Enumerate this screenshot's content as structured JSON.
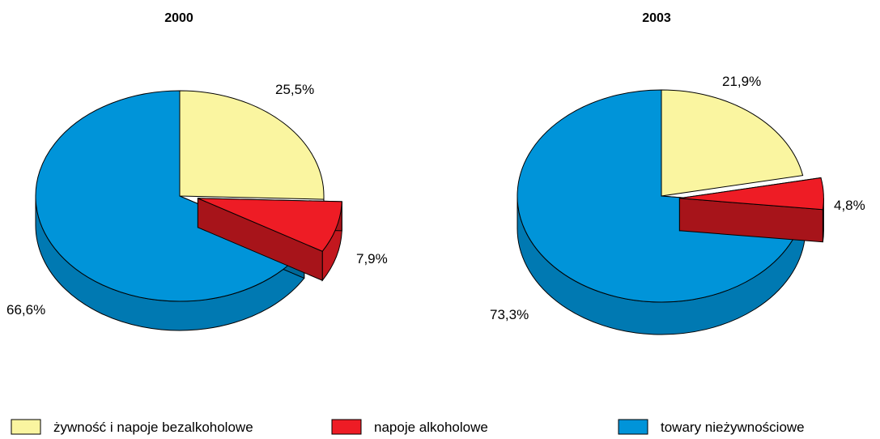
{
  "chart_data": [
    {
      "type": "pie",
      "title": "2000",
      "categories": [
        "żywność i napoje bezalkoholowe",
        "napoje alkoholowe",
        "towary nieżywnościowe"
      ],
      "values": [
        25.5,
        7.9,
        66.6
      ],
      "labels": [
        "25,5%",
        "7,9%",
        "66,6%"
      ],
      "style": "3d-exploded"
    },
    {
      "type": "pie",
      "title": "2003",
      "categories": [
        "żywność i napoje bezalkoholowe",
        "napoje alkoholowe",
        "towary nieżywnościowe"
      ],
      "values": [
        21.9,
        4.8,
        73.3
      ],
      "labels": [
        "21,9%",
        "4,8%",
        "73,3%"
      ],
      "style": "3d-exploded"
    }
  ],
  "legend": {
    "placement": "bottom",
    "items": [
      {
        "label": "żywność i napoje bezalkoholowe",
        "color": "#FAF5A0"
      },
      {
        "label": "napoje alkoholowe",
        "color": "#EE1C25"
      },
      {
        "label": "towary nieżywnościowe",
        "color": "#0094D9"
      }
    ]
  },
  "colors": {
    "food": "#FAF5A0",
    "alcohol": "#EE1C25",
    "nonfood": "#0094D9",
    "outline": "#000000"
  }
}
